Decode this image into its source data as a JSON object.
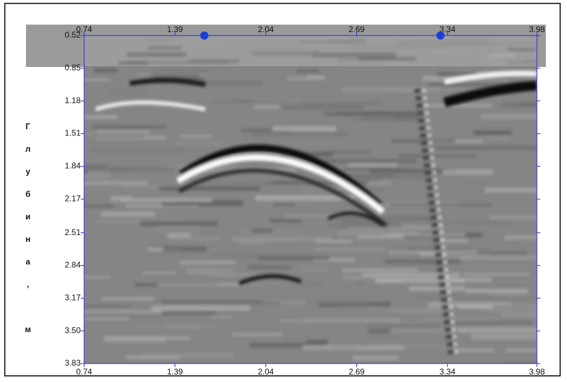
{
  "chart_data": {
    "type": "radargram",
    "y_label": "Глубина, м",
    "xlim": [
      0.74,
      3.98
    ],
    "xticks": [
      0.74,
      1.39,
      2.04,
      2.69,
      3.34,
      3.98
    ],
    "ylim": [
      0.52,
      3.83
    ],
    "yticks": [
      0.52,
      0.85,
      1.18,
      1.51,
      1.84,
      2.17,
      2.51,
      2.84,
      3.17,
      {
        "value": 3.5,
        "label": "3.50"
      },
      3.83
    ],
    "markers": [
      1.6,
      3.29
    ],
    "axis_color": "#2a2ad8",
    "marker_color": "#1a3fd8"
  }
}
